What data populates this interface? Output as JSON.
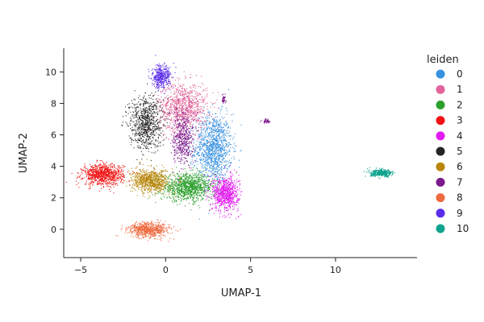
{
  "chart_data": {
    "type": "scatter",
    "title": "",
    "xlabel": "UMAP-1",
    "ylabel": "UMAP-2",
    "xlim": [
      -6,
      14.8
    ],
    "ylim": [
      -1.8,
      11.5
    ],
    "xticks": [
      -5,
      0,
      5,
      10
    ],
    "yticks": [
      0,
      2,
      4,
      6,
      8,
      10
    ],
    "grid": false,
    "legend": {
      "title": "leiden",
      "placement": "right",
      "entries": [
        "0",
        "1",
        "2",
        "3",
        "4",
        "5",
        "6",
        "7",
        "8",
        "9",
        "10"
      ]
    },
    "series": [
      {
        "name": "0",
        "color": "#3791E0",
        "center": [
          2.8,
          5.2
        ],
        "spread": [
          0.9,
          1.8
        ],
        "regions": [
          {
            "c": [
              2.8,
              5.2
            ],
            "s": [
              0.9,
              1.8
            ],
            "n": 1200
          }
        ]
      },
      {
        "name": "1",
        "color": "#E2649A",
        "regions": [
          {
            "c": [
              1.0,
              7.8
            ],
            "s": [
              1.2,
              1.3
            ],
            "n": 1000
          }
        ]
      },
      {
        "name": "2",
        "color": "#2CA02C",
        "regions": [
          {
            "c": [
              1.3,
              2.7
            ],
            "s": [
              1.3,
              0.7
            ],
            "n": 1100
          }
        ]
      },
      {
        "name": "3",
        "color": "#F01313",
        "regions": [
          {
            "c": [
              -3.7,
              3.5
            ],
            "s": [
              1.0,
              0.55
            ],
            "n": 900
          }
        ]
      },
      {
        "name": "4",
        "color": "#E31AF0",
        "regions": [
          {
            "c": [
              3.5,
              2.3
            ],
            "s": [
              0.65,
              0.9
            ],
            "n": 800
          }
        ]
      },
      {
        "name": "5",
        "color": "#252525",
        "regions": [
          {
            "c": [
              -1.2,
              6.8
            ],
            "s": [
              0.8,
              1.4
            ],
            "n": 800
          }
        ]
      },
      {
        "name": "6",
        "color": "#B8860B",
        "regions": [
          {
            "c": [
              -0.9,
              3.1
            ],
            "s": [
              0.9,
              0.6
            ],
            "n": 800
          }
        ]
      },
      {
        "name": "7",
        "color": "#7B1A8B",
        "regions": [
          {
            "c": [
              1.0,
              5.8
            ],
            "s": [
              0.5,
              1.4
            ],
            "n": 500
          },
          {
            "c": [
              3.4,
              8.3
            ],
            "s": [
              0.1,
              0.2
            ],
            "n": 40
          },
          {
            "c": [
              5.9,
              6.9
            ],
            "s": [
              0.2,
              0.15
            ],
            "n": 40
          }
        ]
      },
      {
        "name": "8",
        "color": "#EE6A3F",
        "regions": [
          {
            "c": [
              -1.0,
              0.0
            ],
            "s": [
              1.0,
              0.4
            ],
            "n": 700
          }
        ]
      },
      {
        "name": "9",
        "color": "#5A2BEA",
        "regions": [
          {
            "c": [
              -0.3,
              9.7
            ],
            "s": [
              0.45,
              0.6
            ],
            "n": 400
          }
        ]
      },
      {
        "name": "10",
        "color": "#11A38F",
        "regions": [
          {
            "c": [
              12.7,
              3.6
            ],
            "s": [
              0.55,
              0.18
            ],
            "n": 400
          }
        ]
      }
    ]
  }
}
